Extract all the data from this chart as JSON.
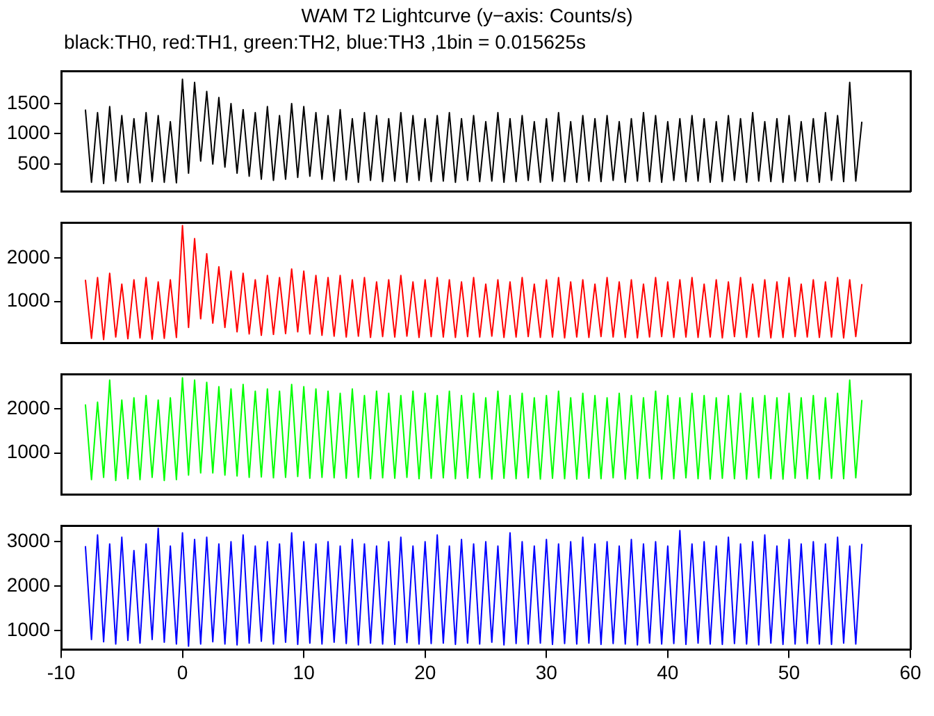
{
  "chart_data": [
    {
      "type": "line",
      "title": "WAM T2 Lightcurve (y−axis: Counts/s)",
      "subtitle": "black:TH0, red:TH1, green:TH2, blue:TH3 ,1bin = 0.015625s",
      "marker": "none",
      "tick_labels": "y",
      "x": [
        -8,
        -7.5,
        -7,
        -6.5,
        -6,
        -5.5,
        -5,
        -4.5,
        -4,
        -3.5,
        -3,
        -2.5,
        -2,
        -1.5,
        -1,
        -0.5,
        0,
        0.5,
        1,
        1.5,
        2,
        2.5,
        3,
        3.5,
        4,
        4.5,
        5,
        5.5,
        6,
        6.5,
        7,
        7.5,
        8,
        8.5,
        9,
        9.5,
        10,
        10.5,
        11,
        11.5,
        12,
        12.5,
        13,
        13.5,
        14,
        14.5,
        15,
        15.5,
        16,
        16.5,
        17,
        17.5,
        18,
        18.5,
        19,
        19.5,
        20,
        20.5,
        21,
        21.5,
        22,
        22.5,
        23,
        23.5,
        24,
        24.5,
        25,
        25.5,
        26,
        26.5,
        27,
        27.5,
        28,
        28.5,
        29,
        29.5,
        30,
        30.5,
        31,
        31.5,
        32,
        32.5,
        33,
        33.5,
        34,
        34.5,
        35,
        35.5,
        36,
        36.5,
        37,
        37.5,
        38,
        38.5,
        39,
        39.5,
        40,
        40.5,
        41,
        41.5,
        42,
        42.5,
        43,
        43.5,
        44,
        44.5,
        45,
        45.5,
        46,
        46.5,
        47,
        47.5,
        48,
        48.5,
        49,
        49.5,
        50,
        50.5,
        51,
        51.5,
        52,
        52.5,
        53,
        53.5,
        54,
        54.5,
        55,
        55.5,
        56
      ],
      "xlim": [
        -10,
        60
      ],
      "xticks": [
        -10,
        0,
        10,
        20,
        30,
        40,
        50,
        60
      ],
      "ylim": [
        50,
        2030
      ],
      "yticks": [
        500,
        1000,
        1500
      ],
      "series": [
        {
          "color": "#000000",
          "values": [
            1400,
            200,
            1350,
            180,
            1450,
            220,
            1300,
            200,
            1250,
            190,
            1350,
            210,
            1300,
            200,
            1200,
            190,
            1900,
            350,
            1850,
            550,
            1700,
            500,
            1600,
            450,
            1500,
            350,
            1400,
            300,
            1350,
            250,
            1450,
            230,
            1300,
            250,
            1500,
            280,
            1450,
            300,
            1350,
            250,
            1300,
            220,
            1400,
            240,
            1250,
            200,
            1350,
            230,
            1300,
            210,
            1250,
            220,
            1350,
            200,
            1300,
            230,
            1250,
            210,
            1300,
            220,
            1350,
            200,
            1250,
            230,
            1300,
            210,
            1200,
            220,
            1350,
            200,
            1250,
            210,
            1300,
            230,
            1200,
            200,
            1250,
            220,
            1350,
            210,
            1200,
            200,
            1300,
            220,
            1250,
            210,
            1300,
            230,
            1200,
            200,
            1250,
            220,
            1350,
            210,
            1300,
            200,
            1200,
            230,
            1250,
            210,
            1300,
            220,
            1250,
            200,
            1200,
            210,
            1300,
            230,
            1250,
            200,
            1350,
            220,
            1200,
            210,
            1250,
            200,
            1300,
            220,
            1200,
            210,
            1250,
            200,
            1350,
            230,
            1300,
            210,
            1850,
            220,
            1200
          ]
        }
      ]
    },
    {
      "type": "line",
      "marker": "none",
      "tick_labels": "y",
      "x": [
        -8,
        -7.5,
        -7,
        -6.5,
        -6,
        -5.5,
        -5,
        -4.5,
        -4,
        -3.5,
        -3,
        -2.5,
        -2,
        -1.5,
        -1,
        -0.5,
        0,
        0.5,
        1,
        1.5,
        2,
        2.5,
        3,
        3.5,
        4,
        4.5,
        5,
        5.5,
        6,
        6.5,
        7,
        7.5,
        8,
        8.5,
        9,
        9.5,
        10,
        10.5,
        11,
        11.5,
        12,
        12.5,
        13,
        13.5,
        14,
        14.5,
        15,
        15.5,
        16,
        16.5,
        17,
        17.5,
        18,
        18.5,
        19,
        19.5,
        20,
        20.5,
        21,
        21.5,
        22,
        22.5,
        23,
        23.5,
        24,
        24.5,
        25,
        25.5,
        26,
        26.5,
        27,
        27.5,
        28,
        28.5,
        29,
        29.5,
        30,
        30.5,
        31,
        31.5,
        32,
        32.5,
        33,
        33.5,
        34,
        34.5,
        35,
        35.5,
        36,
        36.5,
        37,
        37.5,
        38,
        38.5,
        39,
        39.5,
        40,
        40.5,
        41,
        41.5,
        42,
        42.5,
        43,
        43.5,
        44,
        44.5,
        45,
        45.5,
        46,
        46.5,
        47,
        47.5,
        48,
        48.5,
        49,
        49.5,
        50,
        50.5,
        51,
        51.5,
        52,
        52.5,
        53,
        53.5,
        54,
        54.5,
        55,
        55.5,
        56
      ],
      "xlim": [
        -10,
        60
      ],
      "xticks": [
        -10,
        0,
        10,
        20,
        30,
        40,
        50,
        60
      ],
      "ylim": [
        45,
        2810
      ],
      "yticks": [
        1000,
        2000
      ],
      "series": [
        {
          "color": "#ff0000",
          "values": [
            1500,
            150,
            1550,
            120,
            1650,
            180,
            1400,
            140,
            1500,
            160,
            1550,
            130,
            1450,
            150,
            1500,
            170,
            2750,
            400,
            2450,
            600,
            2100,
            500,
            1800,
            400,
            1700,
            300,
            1650,
            250,
            1500,
            220,
            1600,
            240,
            1550,
            260,
            1750,
            300,
            1700,
            250,
            1600,
            220,
            1550,
            200,
            1600,
            180,
            1500,
            200,
            1550,
            170,
            1450,
            190,
            1500,
            180,
            1600,
            200,
            1450,
            170,
            1500,
            190,
            1550,
            180,
            1500,
            170,
            1450,
            190,
            1550,
            180,
            1400,
            200,
            1500,
            170,
            1450,
            180,
            1550,
            190,
            1400,
            170,
            1500,
            180,
            1550,
            160,
            1450,
            180,
            1500,
            170,
            1400,
            190,
            1550,
            180,
            1450,
            170,
            1500,
            160,
            1400,
            180,
            1550,
            190,
            1450,
            170,
            1500,
            180,
            1550,
            170,
            1400,
            180,
            1500,
            160,
            1450,
            190,
            1550,
            170,
            1400,
            180,
            1500,
            160,
            1450,
            170,
            1550,
            190,
            1400,
            180,
            1500,
            170,
            1450,
            180,
            1550,
            160,
            1500,
            190,
            1400
          ]
        }
      ]
    },
    {
      "type": "line",
      "marker": "none",
      "tick_labels": "y",
      "x": [
        -8,
        -7.5,
        -7,
        -6.5,
        -6,
        -5.5,
        -5,
        -4.5,
        -4,
        -3.5,
        -3,
        -2.5,
        -2,
        -1.5,
        -1,
        -0.5,
        0,
        0.5,
        1,
        1.5,
        2,
        2.5,
        3,
        3.5,
        4,
        4.5,
        5,
        5.5,
        6,
        6.5,
        7,
        7.5,
        8,
        8.5,
        9,
        9.5,
        10,
        10.5,
        11,
        11.5,
        12,
        12.5,
        13,
        13.5,
        14,
        14.5,
        15,
        15.5,
        16,
        16.5,
        17,
        17.5,
        18,
        18.5,
        19,
        19.5,
        20,
        20.5,
        21,
        21.5,
        22,
        22.5,
        23,
        23.5,
        24,
        24.5,
        25,
        25.5,
        26,
        26.5,
        27,
        27.5,
        28,
        28.5,
        29,
        29.5,
        30,
        30.5,
        31,
        31.5,
        32,
        32.5,
        33,
        33.5,
        34,
        34.5,
        35,
        35.5,
        36,
        36.5,
        37,
        37.5,
        38,
        38.5,
        39,
        39.5,
        40,
        40.5,
        41,
        41.5,
        42,
        42.5,
        43,
        43.5,
        44,
        44.5,
        45,
        45.5,
        46,
        46.5,
        47,
        47.5,
        48,
        48.5,
        49,
        49.5,
        50,
        50.5,
        51,
        51.5,
        52,
        52.5,
        53,
        53.5,
        54,
        54.5,
        55,
        55.5,
        56
      ],
      "xlim": [
        -10,
        60
      ],
      "xticks": [
        -10,
        0,
        10,
        20,
        30,
        40,
        50,
        60
      ],
      "ylim": [
        65,
        2775
      ],
      "yticks": [
        1000,
        2000
      ],
      "series": [
        {
          "color": "#00ff00",
          "values": [
            2100,
            400,
            2150,
            450,
            2650,
            380,
            2200,
            420,
            2250,
            400,
            2300,
            450,
            2200,
            380,
            2250,
            400,
            2700,
            500,
            2650,
            550,
            2600,
            550,
            2500,
            500,
            2450,
            480,
            2550,
            450,
            2400,
            460,
            2450,
            440,
            2400,
            450,
            2550,
            470,
            2500,
            430,
            2450,
            450,
            2400,
            440,
            2350,
            430,
            2450,
            450,
            2300,
            420,
            2400,
            440,
            2350,
            430,
            2300,
            450,
            2400,
            420,
            2350,
            430,
            2300,
            440,
            2400,
            420,
            2300,
            430,
            2350,
            440,
            2250,
            410,
            2400,
            430,
            2300,
            420,
            2350,
            440,
            2250,
            410,
            2300,
            430,
            2400,
            420,
            2250,
            410,
            2350,
            430,
            2300,
            420,
            2250,
            440,
            2350,
            410,
            2300,
            420,
            2250,
            430,
            2400,
            410,
            2300,
            420,
            2250,
            440,
            2350,
            420,
            2300,
            410,
            2250,
            430,
            2300,
            420,
            2350,
            410,
            2250,
            440,
            2300,
            420,
            2250,
            410,
            2350,
            430,
            2250,
            420,
            2300,
            410,
            2250,
            430,
            2350,
            420,
            2650,
            440,
            2200
          ]
        }
      ]
    },
    {
      "type": "line",
      "marker": "none",
      "x": [
        -8,
        -7.5,
        -7,
        -6.5,
        -6,
        -5.5,
        -5,
        -4.5,
        -4,
        -3.5,
        -3,
        -2.5,
        -2,
        -1.5,
        -1,
        -0.5,
        0,
        0.5,
        1,
        1.5,
        2,
        2.5,
        3,
        3.5,
        4,
        4.5,
        5,
        5.5,
        6,
        6.5,
        7,
        7.5,
        8,
        8.5,
        9,
        9.5,
        10,
        10.5,
        11,
        11.5,
        12,
        12.5,
        13,
        13.5,
        14,
        14.5,
        15,
        15.5,
        16,
        16.5,
        17,
        17.5,
        18,
        18.5,
        19,
        19.5,
        20,
        20.5,
        21,
        21.5,
        22,
        22.5,
        23,
        23.5,
        24,
        24.5,
        25,
        25.5,
        26,
        26.5,
        27,
        27.5,
        28,
        28.5,
        29,
        29.5,
        30,
        30.5,
        31,
        31.5,
        32,
        32.5,
        33,
        33.5,
        34,
        34.5,
        35,
        35.5,
        36,
        36.5,
        37,
        37.5,
        38,
        38.5,
        39,
        39.5,
        40,
        40.5,
        41,
        41.5,
        42,
        42.5,
        43,
        43.5,
        44,
        44.5,
        45,
        45.5,
        46,
        46.5,
        47,
        47.5,
        48,
        48.5,
        49,
        49.5,
        50,
        50.5,
        51,
        51.5,
        52,
        52.5,
        53,
        53.5,
        54,
        54.5,
        55,
        55.5,
        56
      ],
      "xlim": [
        -10,
        60
      ],
      "xticks": [
        -10,
        0,
        10,
        20,
        30,
        40,
        50,
        60
      ],
      "ylim": [
        575,
        3350
      ],
      "yticks": [
        1000,
        2000,
        3000
      ],
      "series": [
        {
          "color": "#0000ff",
          "values": [
            2900,
            800,
            3150,
            750,
            2950,
            700,
            3100,
            780,
            2800,
            720,
            2950,
            800,
            3300,
            740,
            2900,
            700,
            3200,
            650,
            3050,
            700,
            3100,
            750,
            2950,
            700,
            3000,
            680,
            3150,
            720,
            2900,
            760,
            3000,
            700,
            2950,
            740,
            3200,
            690,
            3000,
            720,
            2950,
            700,
            3000,
            740,
            2900,
            710,
            3050,
            680,
            2950,
            720,
            2900,
            700,
            3000,
            690,
            3100,
            730,
            2900,
            700,
            3000,
            710,
            3150,
            720,
            2900,
            690,
            3050,
            720,
            2950,
            700,
            3000,
            740,
            2900,
            680,
            3200,
            710,
            3000,
            700,
            2900,
            720,
            3050,
            690,
            2950,
            710,
            3000,
            700,
            3100,
            720,
            2950,
            690,
            3000,
            710,
            2900,
            700,
            3050,
            680,
            2950,
            720,
            3000,
            700,
            2900,
            710,
            3250,
            690,
            2950,
            720,
            3000,
            700,
            2900,
            690,
            3100,
            710,
            2950,
            700,
            3000,
            680,
            3150,
            720,
            2900,
            690,
            3050,
            700,
            2950,
            710,
            3000,
            700,
            2950,
            690,
            3100,
            720,
            2900,
            700,
            2950
          ]
        }
      ]
    }
  ]
}
